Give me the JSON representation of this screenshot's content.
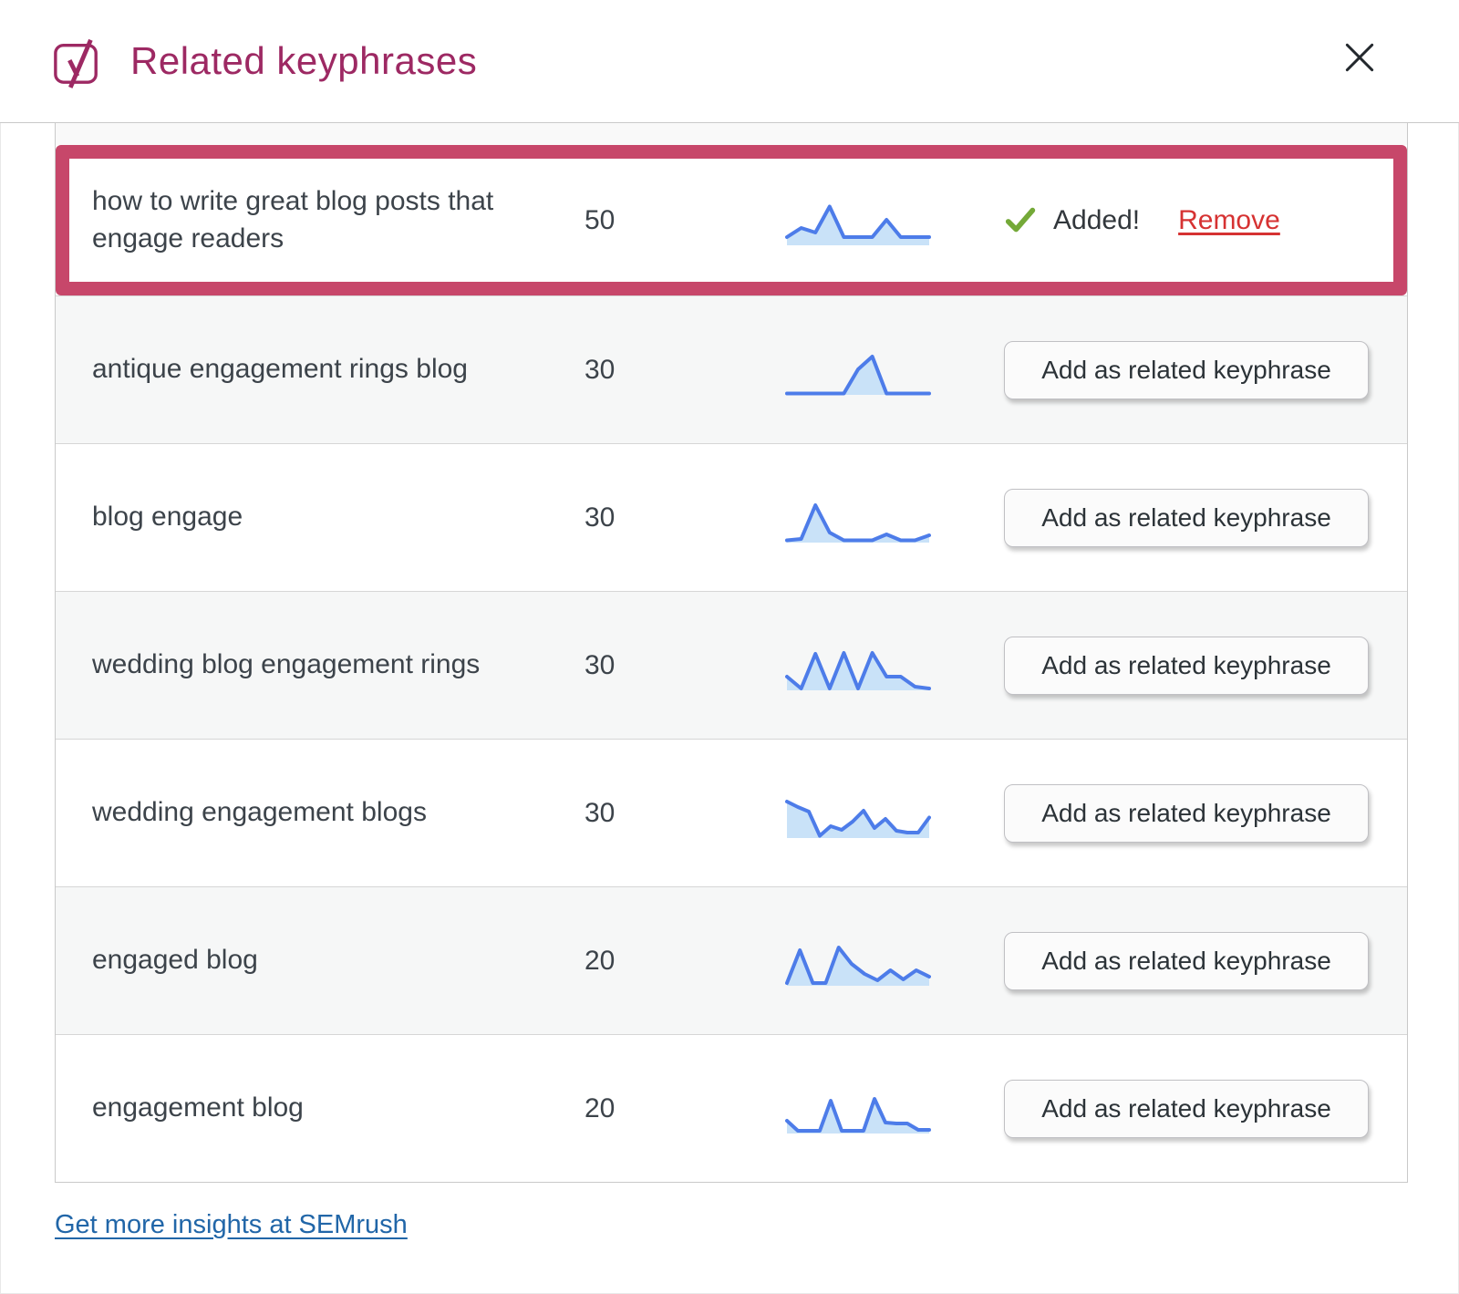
{
  "header": {
    "title": "Related keyphrases",
    "logo_icon": "yoast-y-logo",
    "close_icon": "close-x"
  },
  "table": {
    "add_button_label": "Add as related keyphrase",
    "added_label": "Added!",
    "remove_label": "Remove",
    "check_icon": "green-checkmark",
    "rows": [
      {
        "keyphrase": "how to write great blog posts that engage readers",
        "volume": "50",
        "status": "added",
        "highlighted": true,
        "trend": [
          18,
          38,
          28,
          85,
          18,
          18,
          18,
          56,
          18,
          18,
          18
        ]
      },
      {
        "keyphrase": "antique engagement rings blog",
        "volume": "30",
        "status": "addable",
        "highlighted": false,
        "trend": [
          3,
          3,
          3,
          3,
          3,
          56,
          84,
          3,
          3,
          3,
          3
        ]
      },
      {
        "keyphrase": "blog engage",
        "volume": "30",
        "status": "addable",
        "highlighted": false,
        "trend": [
          5,
          8,
          82,
          22,
          5,
          5,
          5,
          18,
          5,
          5,
          16
        ]
      },
      {
        "keyphrase": "wedding blog engagement rings",
        "volume": "30",
        "status": "addable",
        "highlighted": false,
        "trend": [
          30,
          4,
          80,
          4,
          82,
          4,
          82,
          30,
          30,
          8,
          4
        ]
      },
      {
        "keyphrase": "wedding engagement blogs",
        "volume": "30",
        "status": "addable",
        "highlighted": false,
        "trend": [
          80,
          68,
          58,
          5,
          26,
          18,
          36,
          60,
          22,
          42,
          16,
          12,
          12,
          45
        ]
      },
      {
        "keyphrase": "engaged blog",
        "volume": "20",
        "status": "addable",
        "highlighted": false,
        "trend": [
          6,
          78,
          6,
          6,
          84,
          48,
          26,
          12,
          34,
          14,
          34,
          20
        ]
      },
      {
        "keyphrase": "engagement blog",
        "volume": "20",
        "status": "addable",
        "highlighted": false,
        "trend": [
          28,
          6,
          6,
          6,
          72,
          6,
          6,
          6,
          76,
          24,
          22,
          22,
          8,
          8
        ]
      }
    ]
  },
  "footer": {
    "link_label": "Get more insights at SEMrush"
  },
  "colors": {
    "accent_purple": "#9d2963",
    "highlight_border": "#c7476a",
    "spark_line": "#4d7ce9",
    "spark_fill": "#c9e2f8",
    "check_green": "#74a938",
    "remove_red": "#d63232",
    "link_blue": "#2166a8",
    "row_alt_bg": "#f6f7f7",
    "divider": "#d6d6d6",
    "text": "#3c434a"
  }
}
